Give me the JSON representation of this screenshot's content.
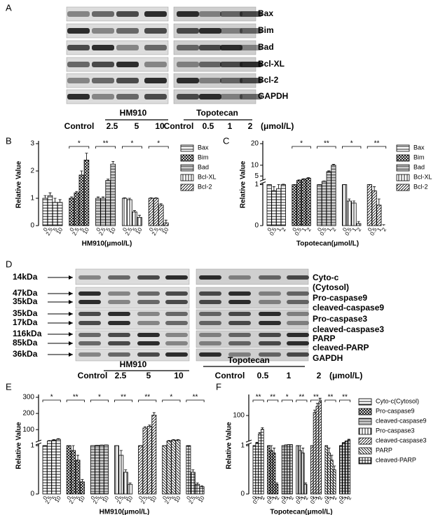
{
  "panel_a": {
    "label": "A",
    "proteins": [
      "Bax",
      "Bim",
      "Bad",
      "Bcl-XL",
      "Bcl-2",
      "GAPDH"
    ],
    "groups": [
      {
        "name": "HM910",
        "lanes": [
          "Control",
          "2.5",
          "5",
          "10"
        ]
      },
      {
        "name": "Topotecan",
        "lanes": [
          "Control",
          "0.5",
          "1",
          "2"
        ]
      }
    ],
    "unit": "(μmol/L)"
  },
  "panel_d": {
    "label": "D",
    "markers": [
      "14kDa",
      "47kDa",
      "35kDa",
      "35kDa",
      "17kDa",
      "116kDa",
      "85kDa",
      "36kDa"
    ],
    "proteins": [
      "Cyto-c",
      "(Cytosol)",
      "Pro-caspase9",
      "cleaved-caspase9",
      "Pro-caspase3",
      "cleaved-caspase3",
      "PARP",
      "cleaved-PARP",
      "GAPDH"
    ],
    "groups": [
      {
        "name": "HM910",
        "lanes": [
          "Control",
          "2.5",
          "5",
          "10"
        ]
      },
      {
        "name": "Topotecan",
        "lanes": [
          "Control",
          "0.5",
          "1",
          "2"
        ]
      }
    ],
    "unit": "(μmol/L)"
  },
  "chart_data": [
    {
      "type": "bar",
      "panel_label": "B",
      "ylabel": "Relative Value",
      "xlabel": "HM910(μmol/L)",
      "categories": [
        "0",
        "2.5",
        "5",
        "10"
      ],
      "ylim": [
        0,
        3
      ],
      "yticks": [
        0,
        1,
        2,
        3
      ],
      "legend": true,
      "series": [
        {
          "name": "Bax",
          "color": "#000000",
          "values": [
            1.0,
            1.1,
            0.85,
            0.85
          ],
          "errors": [
            0.1,
            0.1,
            0.15,
            0.1
          ],
          "significance": null
        },
        {
          "name": "Bim",
          "color": "#000000",
          "values": [
            1.0,
            1.2,
            1.85,
            2.4
          ],
          "errors": [
            0.05,
            0.05,
            0.15,
            0.25
          ],
          "significance": "*"
        },
        {
          "name": "Bad",
          "color": "#000000",
          "values": [
            1.0,
            1.0,
            1.65,
            2.25
          ],
          "errors": [
            0.05,
            0.05,
            0.05,
            0.1
          ],
          "significance": "**"
        },
        {
          "name": "Bcl-XL",
          "color": "#000000",
          "values": [
            1.0,
            0.95,
            0.5,
            0.3
          ],
          "errors": [
            0.02,
            0.05,
            0.05,
            0.08
          ],
          "significance": "*"
        },
        {
          "name": "Bcl-2",
          "color": "#000000",
          "values": [
            1.0,
            1.0,
            0.75,
            0.1
          ],
          "errors": [
            0.02,
            0.02,
            0.05,
            0.1
          ],
          "significance": "*"
        }
      ]
    },
    {
      "type": "bar",
      "panel_label": "C",
      "ylabel": "Relative Value",
      "xlabel": "Topotecan(μmol/L)",
      "categories": [
        "0",
        "0.5",
        "1",
        "2"
      ],
      "ylim": [
        0,
        20
      ],
      "yticks": [
        0,
        1,
        5,
        10,
        20
      ],
      "axis_break": 1,
      "legend": true,
      "series": [
        {
          "name": "Bax",
          "color": "#000000",
          "values": [
            1.0,
            0.85,
            0.9,
            1.0
          ],
          "errors": [
            0.05,
            0.1,
            0.15,
            0.2
          ],
          "significance": null
        },
        {
          "name": "Bim",
          "color": "#000000",
          "values": [
            1.0,
            3.0,
            3.5,
            4.0
          ],
          "errors": [
            0.05,
            0.2,
            0.2,
            0.3
          ],
          "significance": "*"
        },
        {
          "name": "Bad",
          "color": "#000000",
          "values": [
            1.0,
            2.5,
            7.0,
            10.0
          ],
          "errors": [
            0.05,
            0.2,
            0.4,
            0.4
          ],
          "significance": "**"
        },
        {
          "name": "Bcl-XL",
          "color": "#000000",
          "values": [
            1.0,
            0.6,
            0.55,
            0.05
          ],
          "errors": [
            0.02,
            0.05,
            0.05,
            0.05
          ],
          "significance": "*"
        },
        {
          "name": "Bcl-2",
          "color": "#000000",
          "values": [
            1.0,
            0.85,
            0.5,
            0.0
          ],
          "errors": [
            0.02,
            0.1,
            0.15,
            0.02
          ],
          "significance": "**"
        }
      ]
    },
    {
      "type": "bar",
      "panel_label": "E",
      "ylabel": "Relative Value",
      "xlabel": "HM910(μmol/L)",
      "categories": [
        "0",
        "2.5",
        "5",
        "10"
      ],
      "ylim": [
        0,
        300
      ],
      "yticks": [
        0,
        1,
        100,
        200,
        300
      ],
      "axis_break": 1,
      "legend": false,
      "series": [
        {
          "color": "#000000",
          "values": [
            1,
            30,
            35,
            40
          ],
          "errors": [
            0.02,
            3,
            3,
            4
          ],
          "significance": "*"
        },
        {
          "color": "#000000",
          "values": [
            1,
            0.9,
            0.7,
            0.25
          ],
          "errors": [
            0.02,
            0.1,
            0.1,
            0.05
          ],
          "significance": "**"
        },
        {
          "color": "#000000",
          "values": [
            1,
            3,
            4,
            5
          ],
          "errors": [
            0.02,
            0.5,
            0.5,
            0.5
          ],
          "significance": "*"
        },
        {
          "color": "#000000",
          "values": [
            1,
            0.8,
            0.45,
            0.2
          ],
          "errors": [
            0.02,
            0.1,
            0.05,
            0.03
          ],
          "significance": "**"
        },
        {
          "color": "#000000",
          "values": [
            1,
            110,
            120,
            190
          ],
          "errors": [
            0.02,
            8,
            8,
            15
          ],
          "significance": "**"
        },
        {
          "color": "#000000",
          "values": [
            1,
            30,
            35,
            35
          ],
          "errors": [
            0.02,
            3,
            3,
            3
          ],
          "significance": "*"
        },
        {
          "color": "#000000",
          "values": [
            1,
            0.45,
            0.2,
            0.15
          ],
          "errors": [
            0.02,
            0.05,
            0.03,
            0.02
          ],
          "significance": "**"
        }
      ]
    },
    {
      "type": "bar",
      "panel_label": "F",
      "ylabel": "Relative Value",
      "xlabel": "Topotecan(μmol/L)",
      "categories": [
        "0",
        "0.5",
        "1",
        "2"
      ],
      "ylim": [
        0,
        160
      ],
      "yticks": [
        0,
        1,
        100
      ],
      "axis_break": 1,
      "legend": true,
      "series": [
        {
          "name": "Cyto-c(Cytosol)",
          "color": "#000000",
          "values": [
            1,
            10,
            40,
            55
          ],
          "errors": [
            0.02,
            2,
            4,
            5
          ],
          "significance": "**"
        },
        {
          "name": "Pro-caspase9",
          "color": "#000000",
          "values": [
            1,
            0.9,
            0.85,
            0.2
          ],
          "errors": [
            0.02,
            0.1,
            0.1,
            0.03
          ],
          "significance": "**"
        },
        {
          "name": "cleaved-caspase9",
          "color": "#000000",
          "values": [
            1,
            3,
            4,
            4
          ],
          "errors": [
            0.02,
            0.5,
            0.5,
            0.5
          ],
          "significance": "*"
        },
        {
          "name": "Pro-caspase3",
          "color": "#000000",
          "values": [
            1,
            0.9,
            0.85,
            0.2
          ],
          "errors": [
            0.02,
            0.1,
            0.1,
            0.03
          ],
          "significance": "**"
        },
        {
          "name": "cleaved-caspase3",
          "color": "#000000",
          "values": [
            1,
            110,
            130,
            145
          ],
          "errors": [
            0.02,
            8,
            10,
            12
          ],
          "significance": "**"
        },
        {
          "name": "PARP",
          "color": "#000000",
          "values": [
            1,
            0.85,
            0.7,
            0.5
          ],
          "errors": [
            0.02,
            0.1,
            0.1,
            0.08
          ],
          "significance": "**"
        },
        {
          "name": "cleaved-PARP",
          "color": "#000000",
          "values": [
            1,
            10,
            15,
            20
          ],
          "errors": [
            0.02,
            1,
            1.5,
            2
          ],
          "significance": "**"
        }
      ]
    }
  ]
}
